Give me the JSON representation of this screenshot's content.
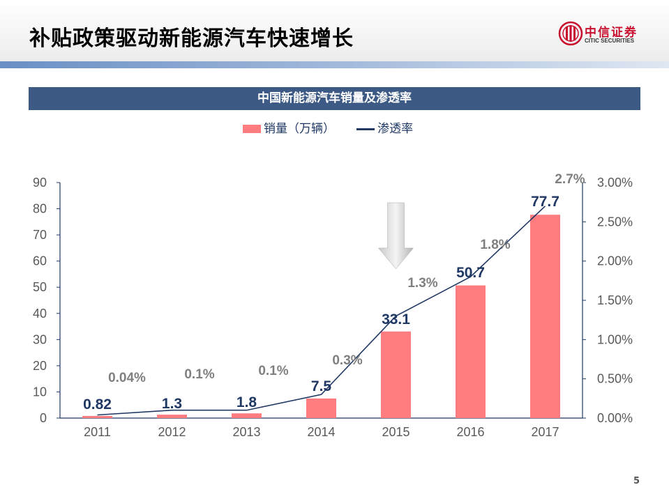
{
  "header": {
    "title": "补贴政策驱动新能源汽车快速增长"
  },
  "logo": {
    "name": "中信证券",
    "sub": "CITIC SECURITIES"
  },
  "banner": {
    "title": "中国新能源汽车销量及渗透率"
  },
  "colors": {
    "bar": "#ff7c80",
    "line": "#1f3864",
    "banner": "#3d5a85",
    "bar_label": "#1f3864",
    "line_label": "#7f7f7f",
    "axis": "#1f3864"
  },
  "chart_data": {
    "type": "bar",
    "title": "中国新能源汽车销量及渗透率",
    "categories": [
      "2011",
      "2012",
      "2013",
      "2014",
      "2015",
      "2016",
      "2017"
    ],
    "series": [
      {
        "name": "销量（万辆）",
        "type": "bar",
        "axis": "left",
        "values": [
          0.82,
          1.3,
          1.8,
          7.5,
          33.1,
          50.7,
          77.7
        ],
        "labels": [
          "0.82",
          "1.3",
          "1.8",
          "7.5",
          "33.1",
          "50.7",
          "77.7"
        ]
      },
      {
        "name": "渗透率",
        "type": "line",
        "axis": "right",
        "values": [
          0.0004,
          0.001,
          0.001,
          0.003,
          0.013,
          0.018,
          0.027
        ],
        "labels": [
          "0.04%",
          "0.1%",
          "0.1%",
          "0.3%",
          "1.3%",
          "1.8%",
          "2.7%"
        ]
      }
    ],
    "y_left": {
      "min": 0,
      "max": 90,
      "ticks": [
        "0",
        "10",
        "20",
        "30",
        "40",
        "50",
        "60",
        "70",
        "80",
        "90"
      ]
    },
    "y_right": {
      "min": 0,
      "max": 0.03,
      "ticks": [
        "0.00%",
        "0.50%",
        "1.00%",
        "1.50%",
        "2.00%",
        "2.50%",
        "3.00%"
      ]
    },
    "legend": "top-center",
    "annotation": "down-arrow-above-2015",
    "grid": false
  },
  "footer": {
    "page": "5"
  }
}
